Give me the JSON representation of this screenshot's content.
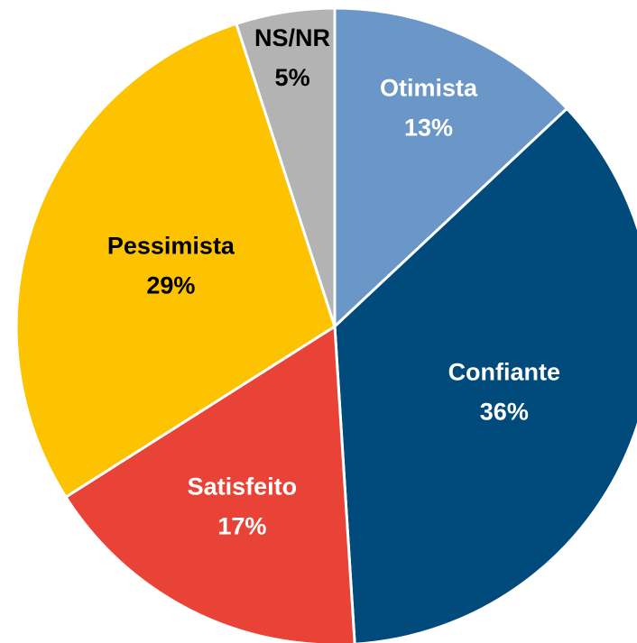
{
  "chart_data": {
    "type": "pie",
    "categories": [
      "Otimista",
      "Confiante",
      "Satisfeito",
      "Pessimista",
      "NS/NR"
    ],
    "values": [
      13,
      36,
      17,
      29,
      5
    ],
    "value_labels": [
      "13%",
      "36%",
      "17%",
      "29%",
      "5%"
    ],
    "colors": [
      "#6a96c8",
      "#004a7c",
      "#e84336",
      "#fdc300",
      "#b3b3b3"
    ],
    "label_colors": [
      "#ffffff",
      "#ffffff",
      "#ffffff",
      "#000000",
      "#000000"
    ]
  }
}
